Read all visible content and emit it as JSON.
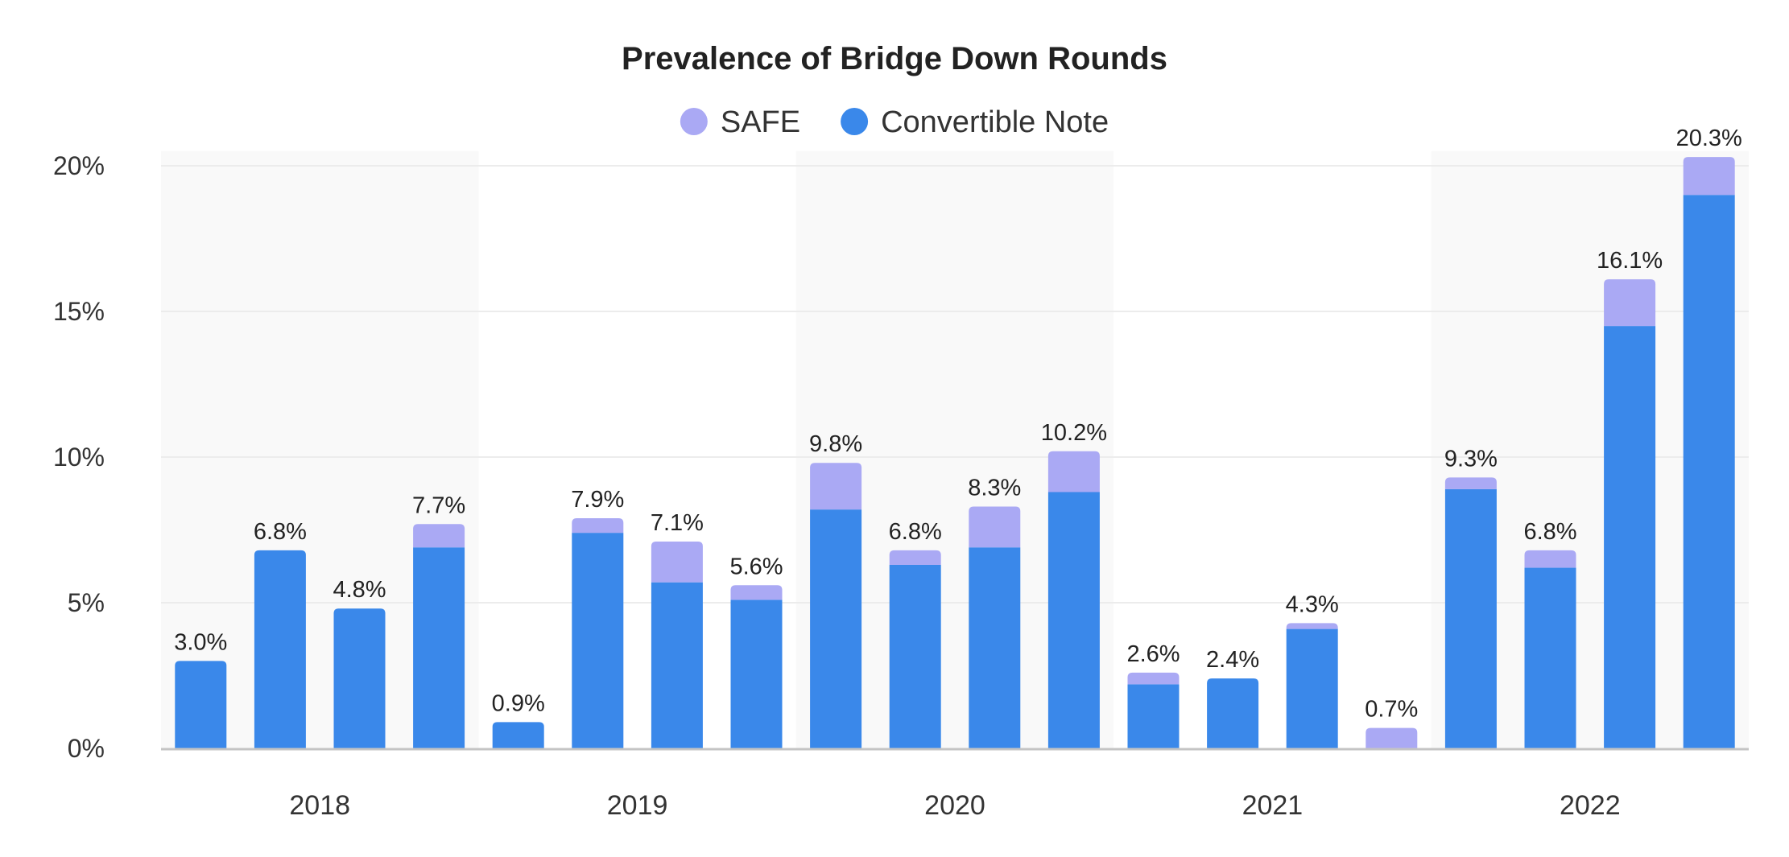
{
  "chart_data": {
    "type": "bar",
    "stacked": true,
    "title": "Prevalence of Bridge Down Rounds",
    "xlabel": "",
    "ylabel": "",
    "legend_position": "top-center",
    "ylim": [
      0,
      20.5
    ],
    "y_ticks": [
      "0%",
      "5%",
      "10%",
      "15%",
      "20%"
    ],
    "y_tick_values": [
      0,
      5,
      10,
      15,
      20
    ],
    "grid": true,
    "group_labels": [
      "2018",
      "2019",
      "2020",
      "2021",
      "2022"
    ],
    "groups_per_label": 4,
    "series": [
      {
        "name": "Convertible Note",
        "color": "#3a88ea",
        "values": [
          3.0,
          6.8,
          4.8,
          6.9,
          0.9,
          7.4,
          5.7,
          5.1,
          8.2,
          6.3,
          6.9,
          8.8,
          2.2,
          2.4,
          4.1,
          0.0,
          8.9,
          6.2,
          14.5,
          19.0
        ]
      },
      {
        "name": "SAFE",
        "color": "#aaa9f4",
        "values": [
          0.0,
          0.0,
          0.0,
          0.8,
          0.0,
          0.5,
          1.4,
          0.5,
          1.6,
          0.5,
          1.4,
          1.4,
          0.4,
          0.0,
          0.2,
          0.7,
          0.4,
          0.6,
          1.6,
          1.3
        ]
      }
    ],
    "totals_labels": [
      "3.0%",
      "6.8%",
      "4.8%",
      "7.7%",
      "0.9%",
      "7.9%",
      "7.1%",
      "5.6%",
      "9.8%",
      "6.8%",
      "8.3%",
      "10.2%",
      "2.6%",
      "2.4%",
      "4.3%",
      "0.7%",
      "9.3%",
      "6.8%",
      "16.1%",
      "20.3%"
    ],
    "legend": [
      {
        "name": "SAFE",
        "color": "#aaa9f4"
      },
      {
        "name": "Convertible Note",
        "color": "#3a88ea"
      }
    ],
    "band_color": "#f9f9f9",
    "grid_color": "#ececec",
    "axis_color": "#c4c4c4"
  }
}
